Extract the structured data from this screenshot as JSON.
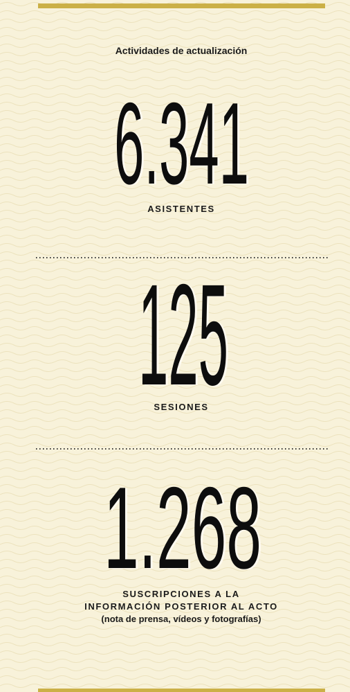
{
  "title": "Actividades de actualización",
  "stats": [
    {
      "number": "6.341",
      "label_lines": [
        "ASISTENTES"
      ]
    },
    {
      "number": "125",
      "label_lines": [
        "SESIONES"
      ]
    },
    {
      "number": "1.268",
      "label_lines": [
        "SUSCRIPCIONES A LA",
        "INFORMACIÓN POSTERIOR AL ACTO"
      ],
      "note": "(nota de prensa, vídeos y fotografías)"
    }
  ]
}
